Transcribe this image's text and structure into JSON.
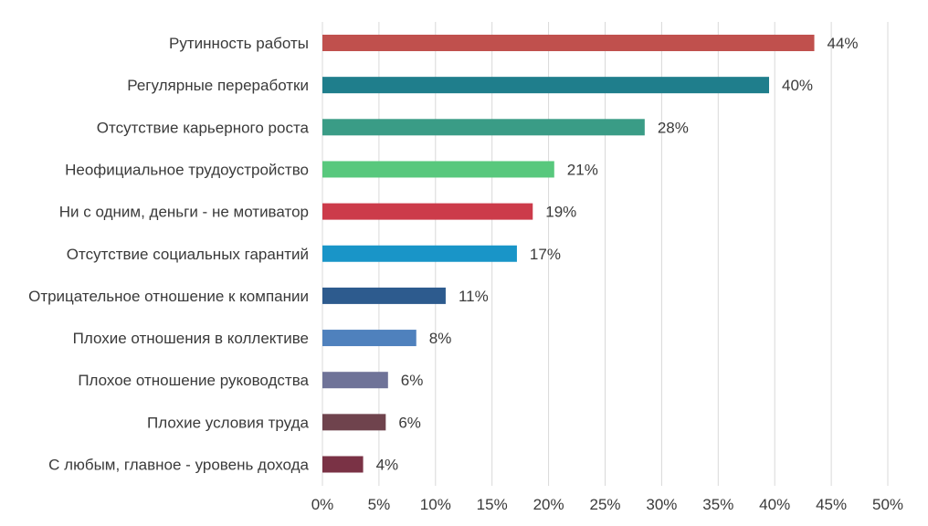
{
  "chart_data": {
    "type": "bar",
    "orientation": "horizontal",
    "categories": [
      "Рутинность работы",
      "Регулярные переработки",
      "Отсутствие карьерного роста",
      "Неофициальное трудоустройство",
      "Ни с одним, деньги - не мотиватор",
      "Отсутствие социальных гарантий",
      "Отрицательное отношение к компании",
      "Плохие отношения в коллективе",
      "Плохое отношение руководства",
      "Плохие условия труда",
      "С любым, главное - уровень дохода"
    ],
    "values": [
      43.5,
      39.5,
      28.5,
      20.5,
      18.6,
      17.2,
      10.9,
      8.3,
      5.8,
      5.6,
      3.6
    ],
    "data_labels": [
      "44%",
      "40%",
      "28%",
      "21%",
      "19%",
      "17%",
      "11%",
      "8%",
      "6%",
      "6%",
      "4%"
    ],
    "bar_colors": [
      "#c0504d",
      "#1f7e8c",
      "#3a9c86",
      "#58c87d",
      "#cc3b4a",
      "#1995c8",
      "#2d5b8e",
      "#4f81bd",
      "#6f7398",
      "#6f434d",
      "#7a3245"
    ],
    "x_ticks": [
      0,
      5,
      10,
      15,
      20,
      25,
      30,
      35,
      40,
      45,
      50
    ],
    "x_tick_labels": [
      "0%",
      "5%",
      "10%",
      "15%",
      "20%",
      "25%",
      "30%",
      "35%",
      "40%",
      "45%",
      "50%"
    ],
    "xlim": [
      0,
      50
    ],
    "title": "",
    "xlabel": "",
    "ylabel": "",
    "grid": true,
    "legend": "none"
  }
}
